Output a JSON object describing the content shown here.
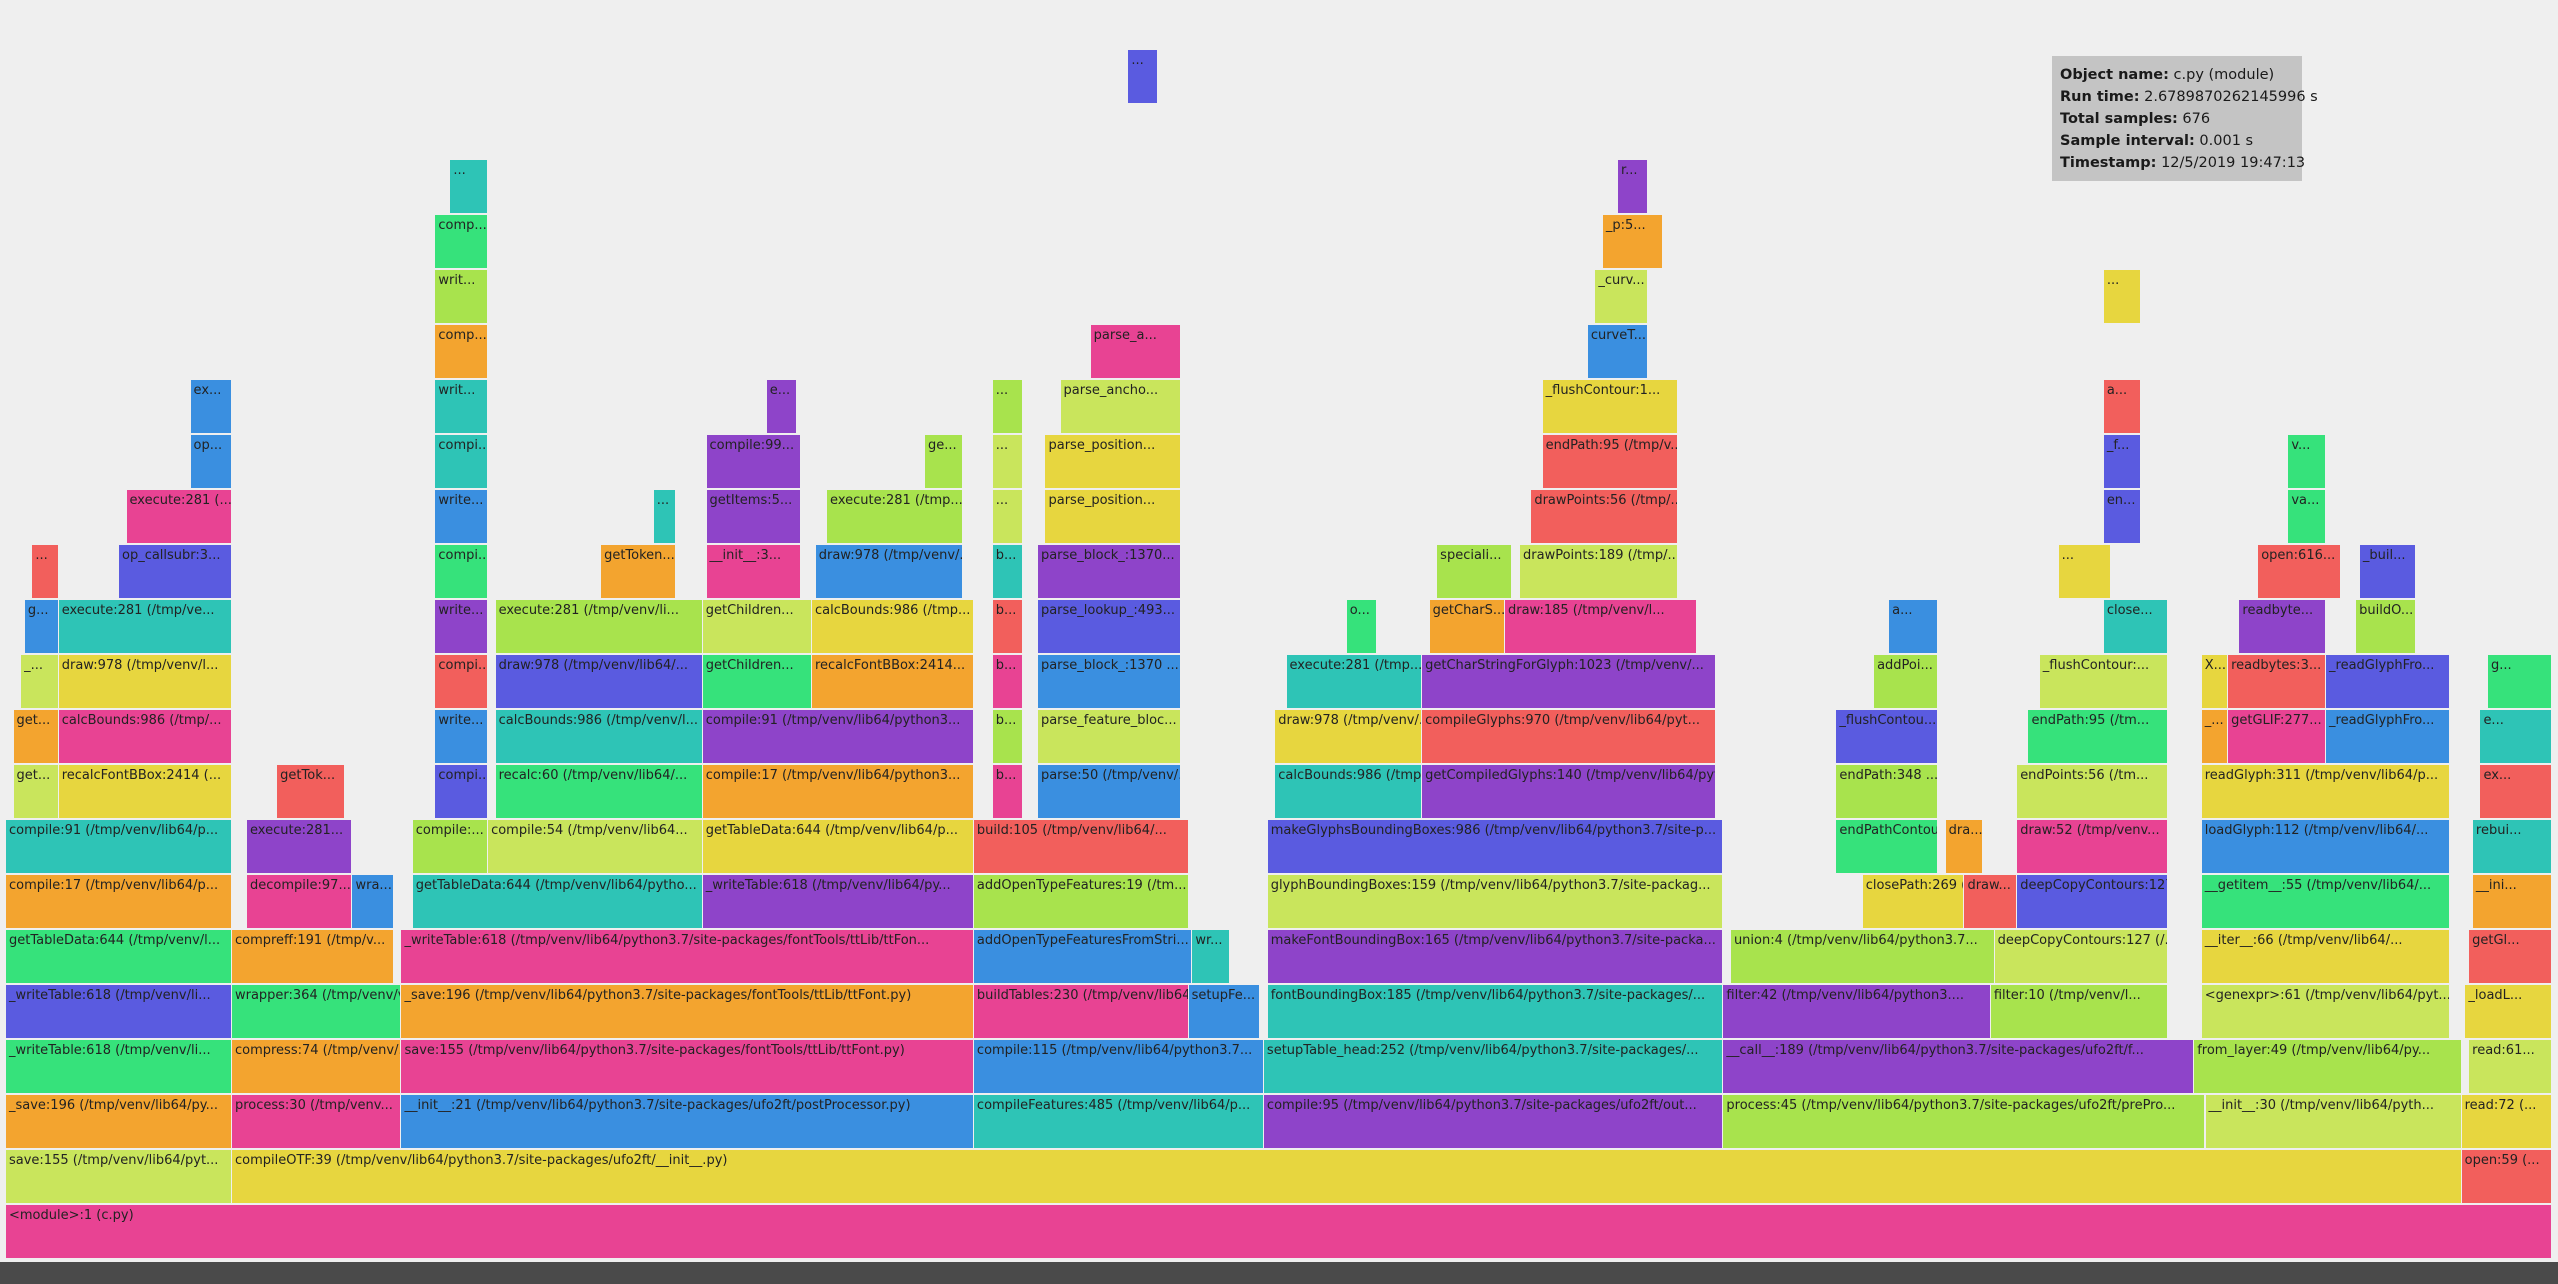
{
  "colors": {
    "background": "#efefef",
    "palette": [
      "#2ec4b6",
      "#f3a42f",
      "#f25f5c",
      "#a8e34d",
      "#3a8fe0",
      "#36e27b",
      "#e7d63f",
      "#8e44c9",
      "#e84393",
      "#5a5be0",
      "#c9e55c"
    ]
  },
  "info": {
    "object_name_label": "Object name:",
    "object_name": "c.py (module)",
    "run_time_label": "Run time:",
    "run_time": "2.6789870262145996 s",
    "total_samples_label": "Total samples:",
    "total_samples": "676",
    "sample_interval_label": "Sample interval:",
    "sample_interval": "0.001 s",
    "timestamp_label": "Timestamp:",
    "timestamp": "12/5/2019 19:47:13"
  },
  "frames": [
    {
      "name": "<module>:1 (c.py)",
      "depth": 0,
      "start": 0,
      "end": 676
    },
    {
      "name": "save:155 (/tmp/venv/lib64/pyt...",
      "depth": 1,
      "start": 0,
      "end": 60
    },
    {
      "name": "compileOTF:39 (/tmp/venv/lib64/python3.7/site-packages/ufo2ft/__init__.py)",
      "depth": 1,
      "start": 60,
      "end": 652
    },
    {
      "name": "open:59 (...",
      "depth": 1,
      "start": 652,
      "end": 676
    },
    {
      "name": "_save:196 (/tmp/venv/lib64/py...",
      "depth": 2,
      "start": 0,
      "end": 60
    },
    {
      "name": "process:30 (/tmp/venv...",
      "depth": 2,
      "start": 60,
      "end": 105
    },
    {
      "name": "__init__:21 (/tmp/venv/lib64/python3.7/site-packages/ufo2ft/postProcessor.py)",
      "depth": 2,
      "start": 105,
      "end": 257
    },
    {
      "name": "compileFeatures:485 (/tmp/venv/lib64/p...",
      "depth": 2,
      "start": 257,
      "end": 334
    },
    {
      "name": "compile:95 (/tmp/venv/lib64/python3.7/site-packages/ufo2ft/out...",
      "depth": 2,
      "start": 334,
      "end": 456
    },
    {
      "name": "process:45 (/tmp/venv/lib64/python3.7/site-packages/ufo2ft/prePro...",
      "depth": 2,
      "start": 456,
      "end": 584
    },
    {
      "name": "__init__:30 (/tmp/venv/lib64/pyth...",
      "depth": 2,
      "start": 584,
      "end": 652
    },
    {
      "name": "read:72 (...",
      "depth": 2,
      "start": 652,
      "end": 676
    },
    {
      "name": "_writeTable:618 (/tmp/venv/li...",
      "depth": 3,
      "start": 0,
      "end": 60
    },
    {
      "name": "compress:74 (/tmp/venv/...",
      "depth": 3,
      "start": 60,
      "end": 105
    },
    {
      "name": "save:155 (/tmp/venv/lib64/python3.7/site-packages/fontTools/ttLib/ttFont.py)",
      "depth": 3,
      "start": 105,
      "end": 257
    },
    {
      "name": "compile:115 (/tmp/venv/lib64/python3.7...",
      "depth": 3,
      "start": 257,
      "end": 334
    },
    {
      "name": "setupTable_head:252 (/tmp/venv/lib64/python3.7/site-packages/...",
      "depth": 3,
      "start": 334,
      "end": 456
    },
    {
      "name": "__call__:189 (/tmp/venv/lib64/python3.7/site-packages/ufo2ft/f...",
      "depth": 3,
      "start": 456,
      "end": 581
    },
    {
      "name": "from_layer:49 (/tmp/venv/lib64/py...",
      "depth": 3,
      "start": 581,
      "end": 652
    },
    {
      "name": "read:61...",
      "depth": 3,
      "start": 654,
      "end": 676
    },
    {
      "name": "_writeTable:618 (/tmp/venv/li...",
      "depth": 4,
      "start": 0,
      "end": 60
    },
    {
      "name": "wrapper:364 (/tmp/venv/ve...",
      "depth": 4,
      "start": 60,
      "end": 105
    },
    {
      "name": "_save:196 (/tmp/venv/lib64/python3.7/site-packages/fontTools/ttLib/ttFont.py)",
      "depth": 4,
      "start": 105,
      "end": 257
    },
    {
      "name": "buildTables:230 (/tmp/venv/lib64/python3.7...",
      "depth": 4,
      "start": 257,
      "end": 314
    },
    {
      "name": "setupFe...",
      "depth": 4,
      "start": 314,
      "end": 333
    },
    {
      "name": "fontBoundingBox:185 (/tmp/venv/lib64/python3.7/site-packages/...",
      "depth": 4,
      "start": 335,
      "end": 456
    },
    {
      "name": "filter:42 (/tmp/venv/lib64/python3....",
      "depth": 4,
      "start": 456,
      "end": 527
    },
    {
      "name": "filter:10 (/tmp/venv/l...",
      "depth": 4,
      "start": 527,
      "end": 574
    },
    {
      "name": "<genexpr>:61 (/tmp/venv/lib64/pyt...",
      "depth": 4,
      "start": 583,
      "end": 649
    },
    {
      "name": "_loadL...",
      "depth": 4,
      "start": 653,
      "end": 676
    },
    {
      "name": "getTableData:644 (/tmp/venv/l...",
      "depth": 5,
      "start": 0,
      "end": 60
    },
    {
      "name": "compreff:191 (/tmp/v...",
      "depth": 5,
      "start": 60,
      "end": 103
    },
    {
      "name": "_writeTable:618 (/tmp/venv/lib64/python3.7/site-packages/fontTools/ttLib/ttFon...",
      "depth": 5,
      "start": 105,
      "end": 257
    },
    {
      "name": "addOpenTypeFeaturesFromStri...",
      "depth": 5,
      "start": 257,
      "end": 315
    },
    {
      "name": "wr...",
      "depth": 5,
      "start": 315,
      "end": 325
    },
    {
      "name": "makeFontBoundingBox:165 (/tmp/venv/lib64/python3.7/site-packa...",
      "depth": 5,
      "start": 335,
      "end": 456
    },
    {
      "name": "union:4 (/tmp/venv/lib64/python3.7...",
      "depth": 5,
      "start": 458,
      "end": 528
    },
    {
      "name": "deepCopyContours:127 (/...",
      "depth": 5,
      "start": 528,
      "end": 574
    },
    {
      "name": "__iter__:66 (/tmp/venv/lib64/...",
      "depth": 5,
      "start": 583,
      "end": 649
    },
    {
      "name": "getGl...",
      "depth": 5,
      "start": 654,
      "end": 676
    },
    {
      "name": "compile:17 (/tmp/venv/lib64/p...",
      "depth": 6,
      "start": 0,
      "end": 60
    },
    {
      "name": "decompile:97...",
      "depth": 6,
      "start": 64,
      "end": 92
    },
    {
      "name": "wra...",
      "depth": 6,
      "start": 92,
      "end": 103
    },
    {
      "name": "getTableData:644 (/tmp/venv/lib64/pytho...",
      "depth": 6,
      "start": 108,
      "end": 185
    },
    {
      "name": "_writeTable:618 (/tmp/venv/lib64/py...",
      "depth": 6,
      "start": 185,
      "end": 257
    },
    {
      "name": "addOpenTypeFeatures:19 (/tm...",
      "depth": 6,
      "start": 257,
      "end": 314
    },
    {
      "name": "glyphBoundingBoxes:159 (/tmp/venv/lib64/python3.7/site-packag...",
      "depth": 6,
      "start": 335,
      "end": 456
    },
    {
      "name": "closePath:269 (...",
      "depth": 6,
      "start": 493,
      "end": 520
    },
    {
      "name": "draw...",
      "depth": 6,
      "start": 520,
      "end": 534
    },
    {
      "name": "deepCopyContours:127 (/...",
      "depth": 6,
      "start": 534,
      "end": 574
    },
    {
      "name": "__getitem__:55 (/tmp/venv/lib64/...",
      "depth": 6,
      "start": 583,
      "end": 649
    },
    {
      "name": "__ini...",
      "depth": 6,
      "start": 655,
      "end": 676
    },
    {
      "name": "compile:91 (/tmp/venv/lib64/p...",
      "depth": 7,
      "start": 0,
      "end": 60
    },
    {
      "name": "execute:281...",
      "depth": 7,
      "start": 64,
      "end": 92
    },
    {
      "name": "compile:...",
      "depth": 7,
      "start": 108,
      "end": 128
    },
    {
      "name": "compile:54 (/tmp/venv/lib64...",
      "depth": 7,
      "start": 128,
      "end": 185
    },
    {
      "name": "getTableData:644 (/tmp/venv/lib64/p...",
      "depth": 7,
      "start": 185,
      "end": 257
    },
    {
      "name": "build:105 (/tmp/venv/lib64/...",
      "depth": 7,
      "start": 257,
      "end": 314
    },
    {
      "name": "makeGlyphsBoundingBoxes:986 (/tmp/venv/lib64/python3.7/site-p...",
      "depth": 7,
      "start": 335,
      "end": 456
    },
    {
      "name": "endPathContou...",
      "depth": 7,
      "start": 486,
      "end": 513
    },
    {
      "name": "dra...",
      "depth": 7,
      "start": 515,
      "end": 525
    },
    {
      "name": "draw:52 (/tmp/venv...",
      "depth": 7,
      "start": 534,
      "end": 574
    },
    {
      "name": "loadGlyph:112 (/tmp/venv/lib64/...",
      "depth": 7,
      "start": 583,
      "end": 649
    },
    {
      "name": "rebui...",
      "depth": 7,
      "start": 655,
      "end": 676
    },
    {
      "name": "get...",
      "depth": 8,
      "start": 2,
      "end": 14
    },
    {
      "name": "recalcFontBBox:2414 (...",
      "depth": 8,
      "start": 14,
      "end": 60
    },
    {
      "name": "getTok...",
      "depth": 8,
      "start": 72,
      "end": 90
    },
    {
      "name": "compi...",
      "depth": 8,
      "start": 114,
      "end": 128
    },
    {
      "name": "recalc:60 (/tmp/venv/lib64/...",
      "depth": 8,
      "start": 130,
      "end": 185
    },
    {
      "name": "compile:17 (/tmp/venv/lib64/python3...",
      "depth": 8,
      "start": 185,
      "end": 257
    },
    {
      "name": "b...",
      "depth": 8,
      "start": 262,
      "end": 270
    },
    {
      "name": "parse:50 (/tmp/venv/...",
      "depth": 8,
      "start": 274,
      "end": 312
    },
    {
      "name": "calcBounds:986 (/tmp/...",
      "depth": 8,
      "start": 337,
      "end": 376
    },
    {
      "name": "getCompiledGlyphs:140 (/tmp/venv/lib64/pyt...",
      "depth": 8,
      "start": 376,
      "end": 454
    },
    {
      "name": "endPath:348 ...",
      "depth": 8,
      "start": 486,
      "end": 513
    },
    {
      "name": "endPoints:56 (/tm...",
      "depth": 8,
      "start": 534,
      "end": 574
    },
    {
      "name": "readGlyph:311 (/tmp/venv/lib64/p...",
      "depth": 8,
      "start": 583,
      "end": 649
    },
    {
      "name": "ex...",
      "depth": 8,
      "start": 657,
      "end": 676
    },
    {
      "name": "get...",
      "depth": 9,
      "start": 2,
      "end": 14
    },
    {
      "name": "calcBounds:986 (/tmp/...",
      "depth": 9,
      "start": 14,
      "end": 60
    },
    {
      "name": "write...",
      "depth": 9,
      "start": 114,
      "end": 128
    },
    {
      "name": "calcBounds:986 (/tmp/venv/l...",
      "depth": 9,
      "start": 130,
      "end": 185
    },
    {
      "name": "compile:91 (/tmp/venv/lib64/python3...",
      "depth": 9,
      "start": 185,
      "end": 257
    },
    {
      "name": "b...",
      "depth": 9,
      "start": 262,
      "end": 270
    },
    {
      "name": "parse_feature_bloc...",
      "depth": 9,
      "start": 274,
      "end": 312
    },
    {
      "name": "draw:978 (/tmp/venv/...",
      "depth": 9,
      "start": 337,
      "end": 376
    },
    {
      "name": "compileGlyphs:970 (/tmp/venv/lib64/pyt...",
      "depth": 9,
      "start": 376,
      "end": 454
    },
    {
      "name": "_flushContou...",
      "depth": 9,
      "start": 486,
      "end": 513
    },
    {
      "name": "endPath:95 (/tm...",
      "depth": 9,
      "start": 537,
      "end": 574
    },
    {
      "name": "_...",
      "depth": 9,
      "start": 583,
      "end": 590
    },
    {
      "name": "getGLIF:277...",
      "depth": 9,
      "start": 590,
      "end": 616
    },
    {
      "name": "_readGlyphFro...",
      "depth": 9,
      "start": 616,
      "end": 649
    },
    {
      "name": "e...",
      "depth": 9,
      "start": 657,
      "end": 676
    },
    {
      "name": "_...",
      "depth": 10,
      "start": 4,
      "end": 14
    },
    {
      "name": "draw:978 (/tmp/venv/l...",
      "depth": 10,
      "start": 14,
      "end": 60
    },
    {
      "name": "compi...",
      "depth": 10,
      "start": 114,
      "end": 128
    },
    {
      "name": "draw:978 (/tmp/venv/lib64/...",
      "depth": 10,
      "start": 130,
      "end": 185
    },
    {
      "name": "getChildren...",
      "depth": 10,
      "start": 185,
      "end": 214
    },
    {
      "name": "recalcFontBBox:2414...",
      "depth": 10,
      "start": 214,
      "end": 257
    },
    {
      "name": "b...",
      "depth": 10,
      "start": 262,
      "end": 270
    },
    {
      "name": "parse_block_:1370 ...",
      "depth": 10,
      "start": 274,
      "end": 312
    },
    {
      "name": "execute:281 (/tmp...",
      "depth": 10,
      "start": 340,
      "end": 376
    },
    {
      "name": "getCharStringForGlyph:1023 (/tmp/venv/...",
      "depth": 10,
      "start": 376,
      "end": 454
    },
    {
      "name": "addPoi...",
      "depth": 10,
      "start": 496,
      "end": 513
    },
    {
      "name": "_flushContour:...",
      "depth": 10,
      "start": 540,
      "end": 574
    },
    {
      "name": "X...",
      "depth": 10,
      "start": 583,
      "end": 590
    },
    {
      "name": "readbytes:3...",
      "depth": 10,
      "start": 590,
      "end": 616
    },
    {
      "name": "_readGlyphFro...",
      "depth": 10,
      "start": 616,
      "end": 649
    },
    {
      "name": "g...",
      "depth": 10,
      "start": 659,
      "end": 676
    },
    {
      "name": "g...",
      "depth": 11,
      "start": 5,
      "end": 14
    },
    {
      "name": "execute:281 (/tmp/ve...",
      "depth": 11,
      "start": 14,
      "end": 60
    },
    {
      "name": "write...",
      "depth": 11,
      "start": 114,
      "end": 128
    },
    {
      "name": "execute:281 (/tmp/venv/li...",
      "depth": 11,
      "start": 130,
      "end": 185
    },
    {
      "name": "getChildren...",
      "depth": 11,
      "start": 185,
      "end": 214
    },
    {
      "name": "calcBounds:986 (/tmp...",
      "depth": 11,
      "start": 214,
      "end": 257
    },
    {
      "name": "b...",
      "depth": 11,
      "start": 262,
      "end": 270
    },
    {
      "name": "parse_lookup_:493...",
      "depth": 11,
      "start": 274,
      "end": 312
    },
    {
      "name": "o...",
      "depth": 11,
      "start": 356,
      "end": 364
    },
    {
      "name": "getCharS...",
      "depth": 11,
      "start": 378,
      "end": 398
    },
    {
      "name": "draw:185 (/tmp/venv/l...",
      "depth": 11,
      "start": 398,
      "end": 449
    },
    {
      "name": "a...",
      "depth": 11,
      "start": 500,
      "end": 513
    },
    {
      "name": "close...",
      "depth": 11,
      "start": 557,
      "end": 574
    },
    {
      "name": "readbyte...",
      "depth": 11,
      "start": 593,
      "end": 616
    },
    {
      "name": "buildO...",
      "depth": 11,
      "start": 624,
      "end": 640
    },
    {
      "name": "...",
      "depth": 12,
      "start": 7,
      "end": 14
    },
    {
      "name": "op_callsubr:3...",
      "depth": 12,
      "start": 30,
      "end": 60
    },
    {
      "name": "compi...",
      "depth": 12,
      "start": 114,
      "end": 128
    },
    {
      "name": "getToken...",
      "depth": 12,
      "start": 158,
      "end": 178
    },
    {
      "name": "__init__:3...",
      "depth": 12,
      "start": 186,
      "end": 211
    },
    {
      "name": "draw:978 (/tmp/venv/...",
      "depth": 12,
      "start": 215,
      "end": 254
    },
    {
      "name": "b...",
      "depth": 12,
      "start": 262,
      "end": 270
    },
    {
      "name": "parse_block_:1370...",
      "depth": 12,
      "start": 274,
      "end": 312
    },
    {
      "name": "speciali...",
      "depth": 12,
      "start": 380,
      "end": 400
    },
    {
      "name": "drawPoints:189 (/tmp/...",
      "depth": 12,
      "start": 402,
      "end": 444
    },
    {
      "name": "...",
      "depth": 12,
      "start": 545,
      "end": 559
    },
    {
      "name": "open:616...",
      "depth": 12,
      "start": 598,
      "end": 620
    },
    {
      "name": "_buil...",
      "depth": 12,
      "start": 625,
      "end": 640
    },
    {
      "name": "execute:281 (...",
      "depth": 13,
      "start": 32,
      "end": 60
    },
    {
      "name": "write...",
      "depth": 13,
      "start": 114,
      "end": 128
    },
    {
      "name": "...",
      "depth": 13,
      "start": 172,
      "end": 178
    },
    {
      "name": "getItems:5...",
      "depth": 13,
      "start": 186,
      "end": 211
    },
    {
      "name": "execute:281 (/tmp...",
      "depth": 13,
      "start": 218,
      "end": 254
    },
    {
      "name": "...",
      "depth": 13,
      "start": 262,
      "end": 270
    },
    {
      "name": "parse_position...",
      "depth": 13,
      "start": 276,
      "end": 312
    },
    {
      "name": "drawPoints:56 (/tmp/...",
      "depth": 13,
      "start": 405,
      "end": 444
    },
    {
      "name": "en...",
      "depth": 13,
      "start": 557,
      "end": 567
    },
    {
      "name": "va...",
      "depth": 13,
      "start": 606,
      "end": 616
    },
    {
      "name": "op...",
      "depth": 14,
      "start": 49,
      "end": 60
    },
    {
      "name": "compi...",
      "depth": 14,
      "start": 114,
      "end": 128
    },
    {
      "name": "compile:99...",
      "depth": 14,
      "start": 186,
      "end": 211
    },
    {
      "name": "ge...",
      "depth": 14,
      "start": 244,
      "end": 254
    },
    {
      "name": "...",
      "depth": 14,
      "start": 262,
      "end": 270
    },
    {
      "name": "parse_position...",
      "depth": 14,
      "start": 276,
      "end": 312
    },
    {
      "name": "endPath:95 (/tmp/v...",
      "depth": 14,
      "start": 408,
      "end": 444
    },
    {
      "name": "_f...",
      "depth": 14,
      "start": 557,
      "end": 567
    },
    {
      "name": "v...",
      "depth": 14,
      "start": 606,
      "end": 616
    },
    {
      "name": "ex...",
      "depth": 15,
      "start": 49,
      "end": 60
    },
    {
      "name": "writ...",
      "depth": 15,
      "start": 114,
      "end": 128
    },
    {
      "name": "e...",
      "depth": 15,
      "start": 202,
      "end": 210
    },
    {
      "name": "...",
      "depth": 15,
      "start": 262,
      "end": 270
    },
    {
      "name": "parse_ancho...",
      "depth": 15,
      "start": 280,
      "end": 312
    },
    {
      "name": "_flushContour:1...",
      "depth": 15,
      "start": 408,
      "end": 444
    },
    {
      "name": "a...",
      "depth": 15,
      "start": 557,
      "end": 567
    },
    {
      "name": "comp...",
      "depth": 16,
      "start": 114,
      "end": 128
    },
    {
      "name": "parse_a...",
      "depth": 16,
      "start": 288,
      "end": 312
    },
    {
      "name": "curveT...",
      "depth": 16,
      "start": 420,
      "end": 436
    },
    {
      "name": "writ...",
      "depth": 17,
      "start": 114,
      "end": 128
    },
    {
      "name": "_curv...",
      "depth": 17,
      "start": 422,
      "end": 436
    },
    {
      "name": "...",
      "depth": 17,
      "start": 557,
      "end": 567
    },
    {
      "name": "comp...",
      "depth": 18,
      "start": 114,
      "end": 128
    },
    {
      "name": "_p:5...",
      "depth": 18,
      "start": 424,
      "end": 440
    },
    {
      "name": "...",
      "depth": 19,
      "start": 118,
      "end": 128
    },
    {
      "name": "r...",
      "depth": 19,
      "start": 428,
      "end": 436
    },
    {
      "name": "...",
      "depth": 21,
      "start": 298,
      "end": 306
    }
  ]
}
